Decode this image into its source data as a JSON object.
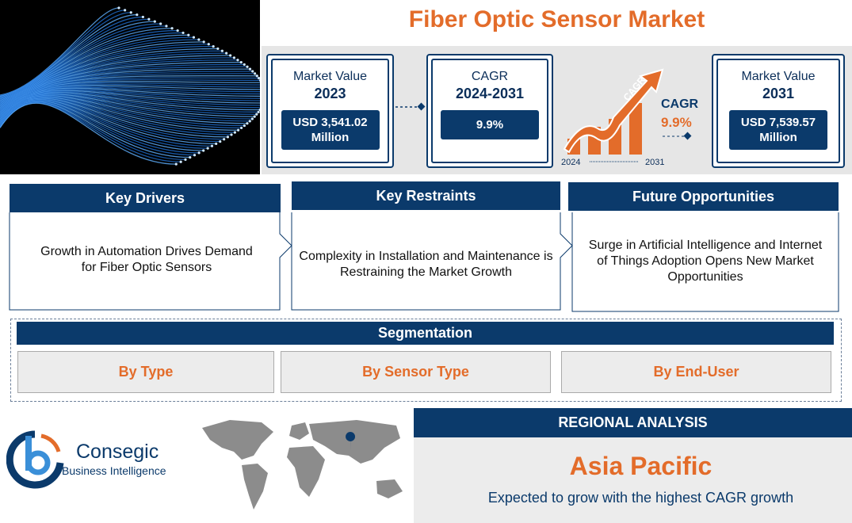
{
  "title": "Fiber Optic Sensor Market",
  "stats": [
    {
      "label": "Market Value",
      "period": "2023",
      "amount": "USD 3,541.02",
      "unit": "Million"
    },
    {
      "label": "CAGR",
      "period": "2024-2031",
      "amount": "9.9%"
    },
    {
      "label": "Market Value",
      "period": "2031",
      "amount": "USD 7,539.57",
      "unit": "Million"
    }
  ],
  "cagr_graphic": {
    "arrow_label": "CAGR",
    "label": "CAGR",
    "value": "9.9%",
    "start": "2024",
    "end": "2031"
  },
  "factors": [
    {
      "heading": "Key Drivers",
      "text": "Growth in Automation Drives Demand for Fiber Optic Sensors"
    },
    {
      "heading": "Key Restraints",
      "text": "Complexity in Installation and Maintenance is Restraining the Market Growth"
    },
    {
      "heading": "Future Opportunities",
      "text": "Surge in Artificial Intelligence and Internet of Things Adoption Opens New Market Opportunities"
    }
  ],
  "segmentation": {
    "heading": "Segmentation",
    "items": [
      "By Type",
      "By Sensor Type",
      "By End-User"
    ]
  },
  "brand": {
    "name": "Consegic",
    "tagline": "Business Intelligence"
  },
  "regional": {
    "heading": "REGIONAL ANALYSIS",
    "region": "Asia Pacific",
    "text": "Expected to grow with the highest CAGR growth"
  }
}
